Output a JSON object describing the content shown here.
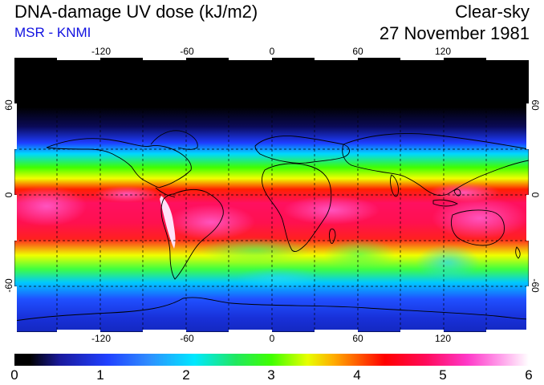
{
  "header": {
    "title": "DNA-damage UV dose (kJ/m2)",
    "credit": "MSR - KNMI",
    "sky_condition": "Clear-sky",
    "date": "27 November 1981"
  },
  "map": {
    "lon_ticks": [
      "-120",
      "-60",
      "0",
      "60",
      "120"
    ],
    "lat_ticks": [
      "60",
      "0",
      "-60"
    ],
    "lat_ticks_right": [
      "60",
      "0",
      "-60"
    ],
    "colors": {
      "polar": "#000000",
      "low": "#1830d8",
      "mid": "#20e020",
      "high": "#ff1040",
      "peak": "#ff60d0"
    }
  },
  "colorbar": {
    "labels": [
      "0",
      "1",
      "2",
      "3",
      "4",
      "5",
      "6"
    ],
    "min": 0,
    "max": 6,
    "units": "kJ/m2"
  }
}
